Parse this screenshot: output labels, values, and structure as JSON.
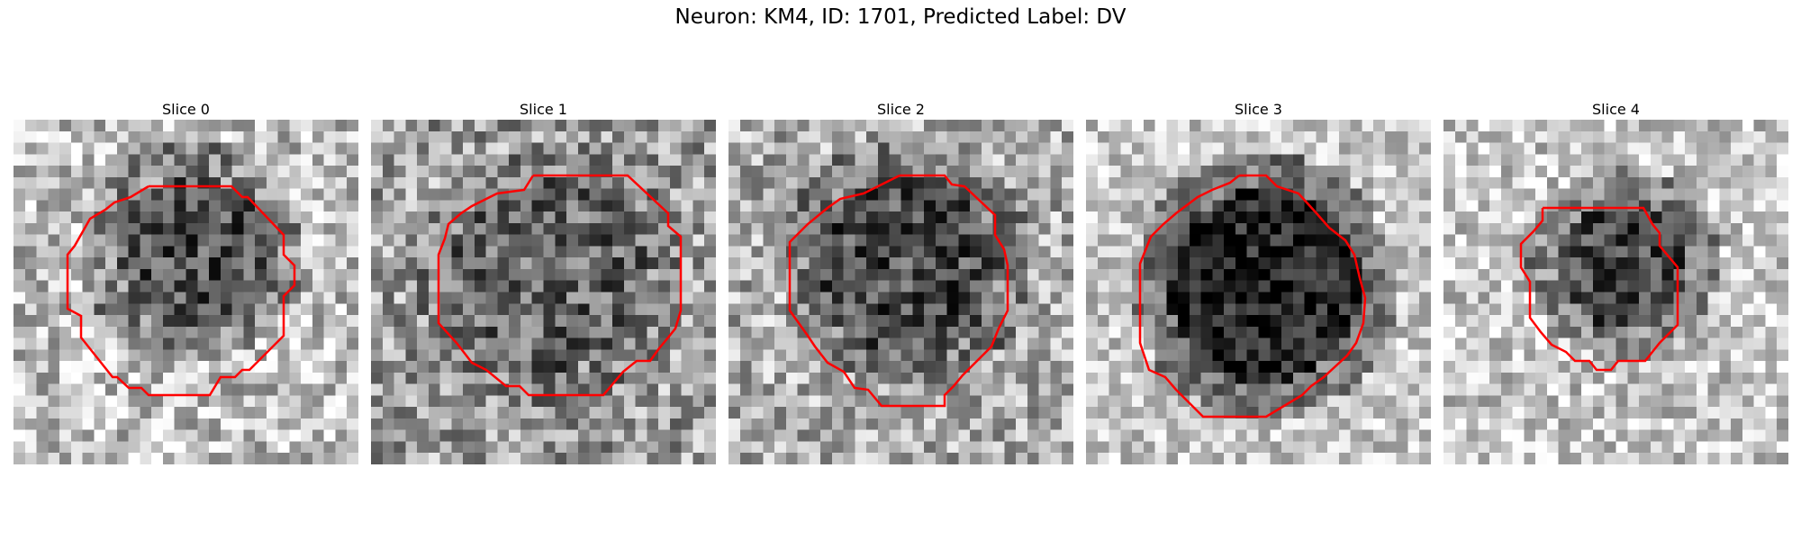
{
  "title": "Neuron: KM4, ID: 1701, Predicted Label: DV",
  "outline_color": "#ff0000",
  "slices": [
    {
      "label": "Slice 0"
    },
    {
      "label": "Slice 1"
    },
    {
      "label": "Slice 2"
    },
    {
      "label": "Slice 3"
    },
    {
      "label": "Slice 4"
    }
  ]
}
